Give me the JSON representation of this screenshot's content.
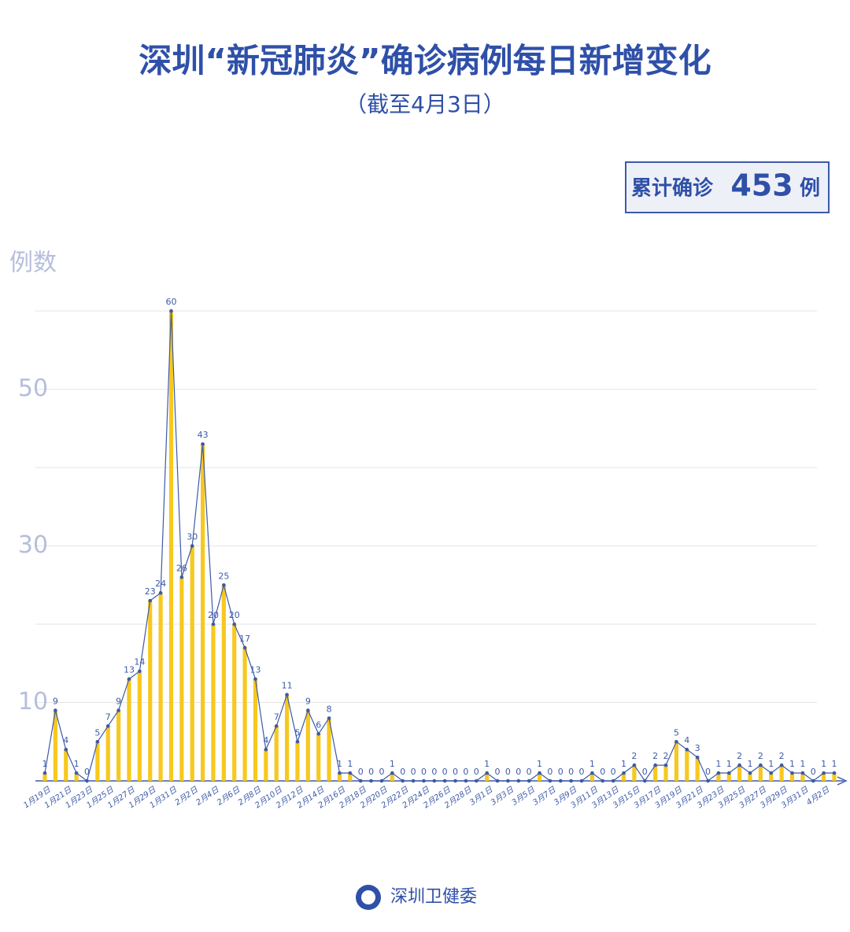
{
  "chart_data": {
    "type": "bar_line",
    "title": "深圳“新冠肺炎”确诊病例每日新增变化",
    "subtitle": "（截至4月3日）",
    "total": {
      "label": "累计确诊",
      "value": 453,
      "unit": "例"
    },
    "y_axis_label": "例数",
    "source": "深圳卫健委",
    "categories": [
      "1月19日",
      null,
      "1月21日",
      null,
      "1月23日",
      null,
      "1月25日",
      null,
      "1月27日",
      null,
      "1月29日",
      null,
      "1月31日",
      null,
      "2月2日",
      null,
      "2月4日",
      null,
      "2月6日",
      null,
      "2月8日",
      null,
      "2月10日",
      null,
      "2月12日",
      null,
      "2月14日",
      null,
      "2月16日",
      null,
      "2月18日",
      null,
      "2月20日",
      null,
      "2月22日",
      null,
      "2月24日",
      null,
      "2月26日",
      null,
      "2月28日",
      null,
      "3月1日",
      null,
      "3月3日",
      null,
      "3月5日",
      null,
      "3月7日",
      null,
      "3月9日",
      null,
      "3月11日",
      null,
      "3月13日",
      null,
      "3月15日",
      null,
      "3月17日",
      null,
      "3月19日",
      null,
      "3月21日",
      null,
      "3月23日",
      null,
      "3月25日",
      null,
      "3月27日",
      null,
      "3月29日",
      null,
      "3月31日",
      null,
      "4月2日",
      null
    ],
    "values": [
      1,
      9,
      4,
      1,
      0,
      5,
      7,
      9,
      13,
      14,
      23,
      24,
      60,
      26,
      30,
      43,
      20,
      25,
      20,
      17,
      13,
      4,
      7,
      11,
      5,
      9,
      6,
      8,
      1,
      1,
      0,
      0,
      0,
      1,
      0,
      0,
      0,
      0,
      0,
      0,
      0,
      0,
      1,
      0,
      0,
      0,
      0,
      1,
      0,
      0,
      0,
      0,
      1,
      0,
      0,
      1,
      2,
      0,
      2,
      2,
      5,
      4,
      3,
      0,
      1,
      1,
      2,
      1,
      2,
      1,
      2,
      1,
      1,
      0,
      1,
      1
    ],
    "bar_color": "#f7c81e",
    "line_color": "#3d5aa8",
    "ylim": [
      0,
      60
    ],
    "yticks": [
      10,
      30,
      50
    ],
    "gridlines": [
      10,
      20,
      30,
      40,
      50,
      60
    ]
  }
}
